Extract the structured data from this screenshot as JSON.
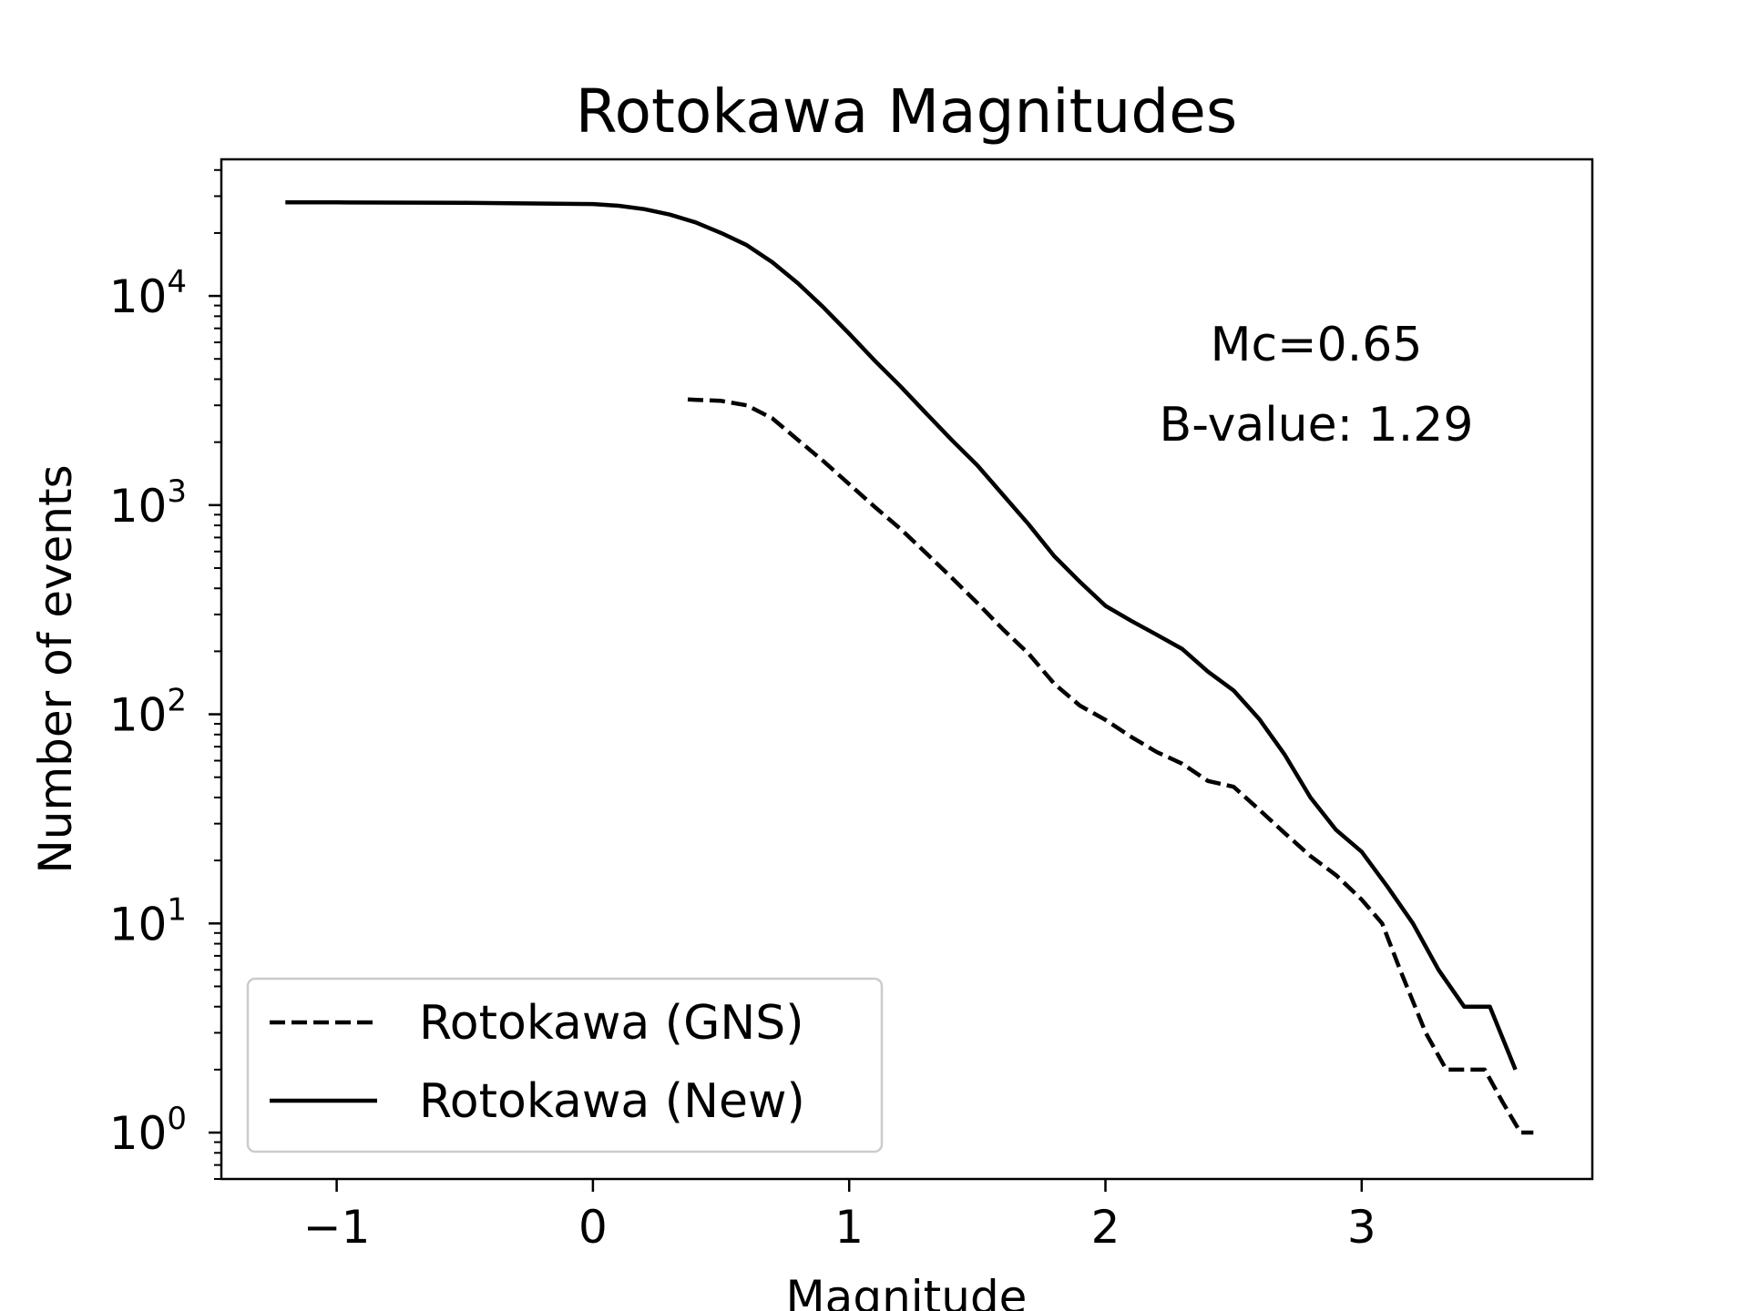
{
  "chart_data": {
    "type": "line",
    "title": "Rotokawa Magnitudes",
    "xlabel": "Magnitude",
    "ylabel": "Number of events",
    "yscale": "log",
    "xlim": [
      -1.45,
      3.9
    ],
    "ylim": [
      0.6,
      45000
    ],
    "xticks": [
      -1,
      0,
      1,
      2,
      3
    ],
    "xtick_labels": [
      "−1",
      "0",
      "1",
      "2",
      "3"
    ],
    "yticks": [
      1,
      10,
      100,
      1000,
      10000
    ],
    "ytick_labels": [
      {
        "base": "10",
        "exp": "0"
      },
      {
        "base": "10",
        "exp": "1"
      },
      {
        "base": "10",
        "exp": "2"
      },
      {
        "base": "10",
        "exp": "3"
      },
      {
        "base": "10",
        "exp": "4"
      }
    ],
    "grid": false,
    "legend_position": "lower-left",
    "annotations": [
      "Mc=0.65",
      "B-value: 1.29"
    ],
    "series": [
      {
        "name": "Rotokawa (GNS)",
        "style": "dashed",
        "color": "#000000",
        "x": [
          0.37,
          0.5,
          0.6,
          0.7,
          0.8,
          0.9,
          1.0,
          1.1,
          1.2,
          1.3,
          1.4,
          1.5,
          1.6,
          1.7,
          1.8,
          1.9,
          2.0,
          2.1,
          2.2,
          2.3,
          2.4,
          2.5,
          2.6,
          2.7,
          2.8,
          2.9,
          3.0,
          3.08,
          3.15,
          3.25,
          3.33,
          3.4,
          3.48,
          3.55,
          3.62,
          3.67
        ],
        "y": [
          3200,
          3150,
          3000,
          2600,
          2050,
          1620,
          1260,
          980,
          770,
          590,
          450,
          340,
          255,
          195,
          140,
          110,
          94,
          78,
          66,
          58,
          48,
          45,
          35,
          27,
          21,
          17,
          13,
          10,
          6,
          3,
          2,
          2,
          2,
          1.4,
          1,
          1
        ]
      },
      {
        "name": "Rotokawa (New)",
        "style": "solid",
        "color": "#000000",
        "x": [
          -1.2,
          -1.0,
          -0.5,
          0.0,
          0.1,
          0.2,
          0.3,
          0.4,
          0.5,
          0.6,
          0.7,
          0.8,
          0.9,
          1.0,
          1.1,
          1.2,
          1.3,
          1.4,
          1.5,
          1.6,
          1.7,
          1.8,
          1.9,
          2.0,
          2.1,
          2.2,
          2.3,
          2.4,
          2.5,
          2.6,
          2.7,
          2.8,
          2.9,
          3.0,
          3.1,
          3.2,
          3.3,
          3.4,
          3.5,
          3.6
        ],
        "y": [
          28000,
          28000,
          27900,
          27500,
          27000,
          26000,
          24500,
          22500,
          20000,
          17500,
          14500,
          11500,
          8800,
          6600,
          4900,
          3700,
          2750,
          2050,
          1550,
          1120,
          810,
          570,
          430,
          330,
          280,
          240,
          205,
          160,
          130,
          95,
          64,
          40,
          28,
          22,
          15,
          10,
          6,
          4,
          4,
          2
        ]
      }
    ]
  }
}
